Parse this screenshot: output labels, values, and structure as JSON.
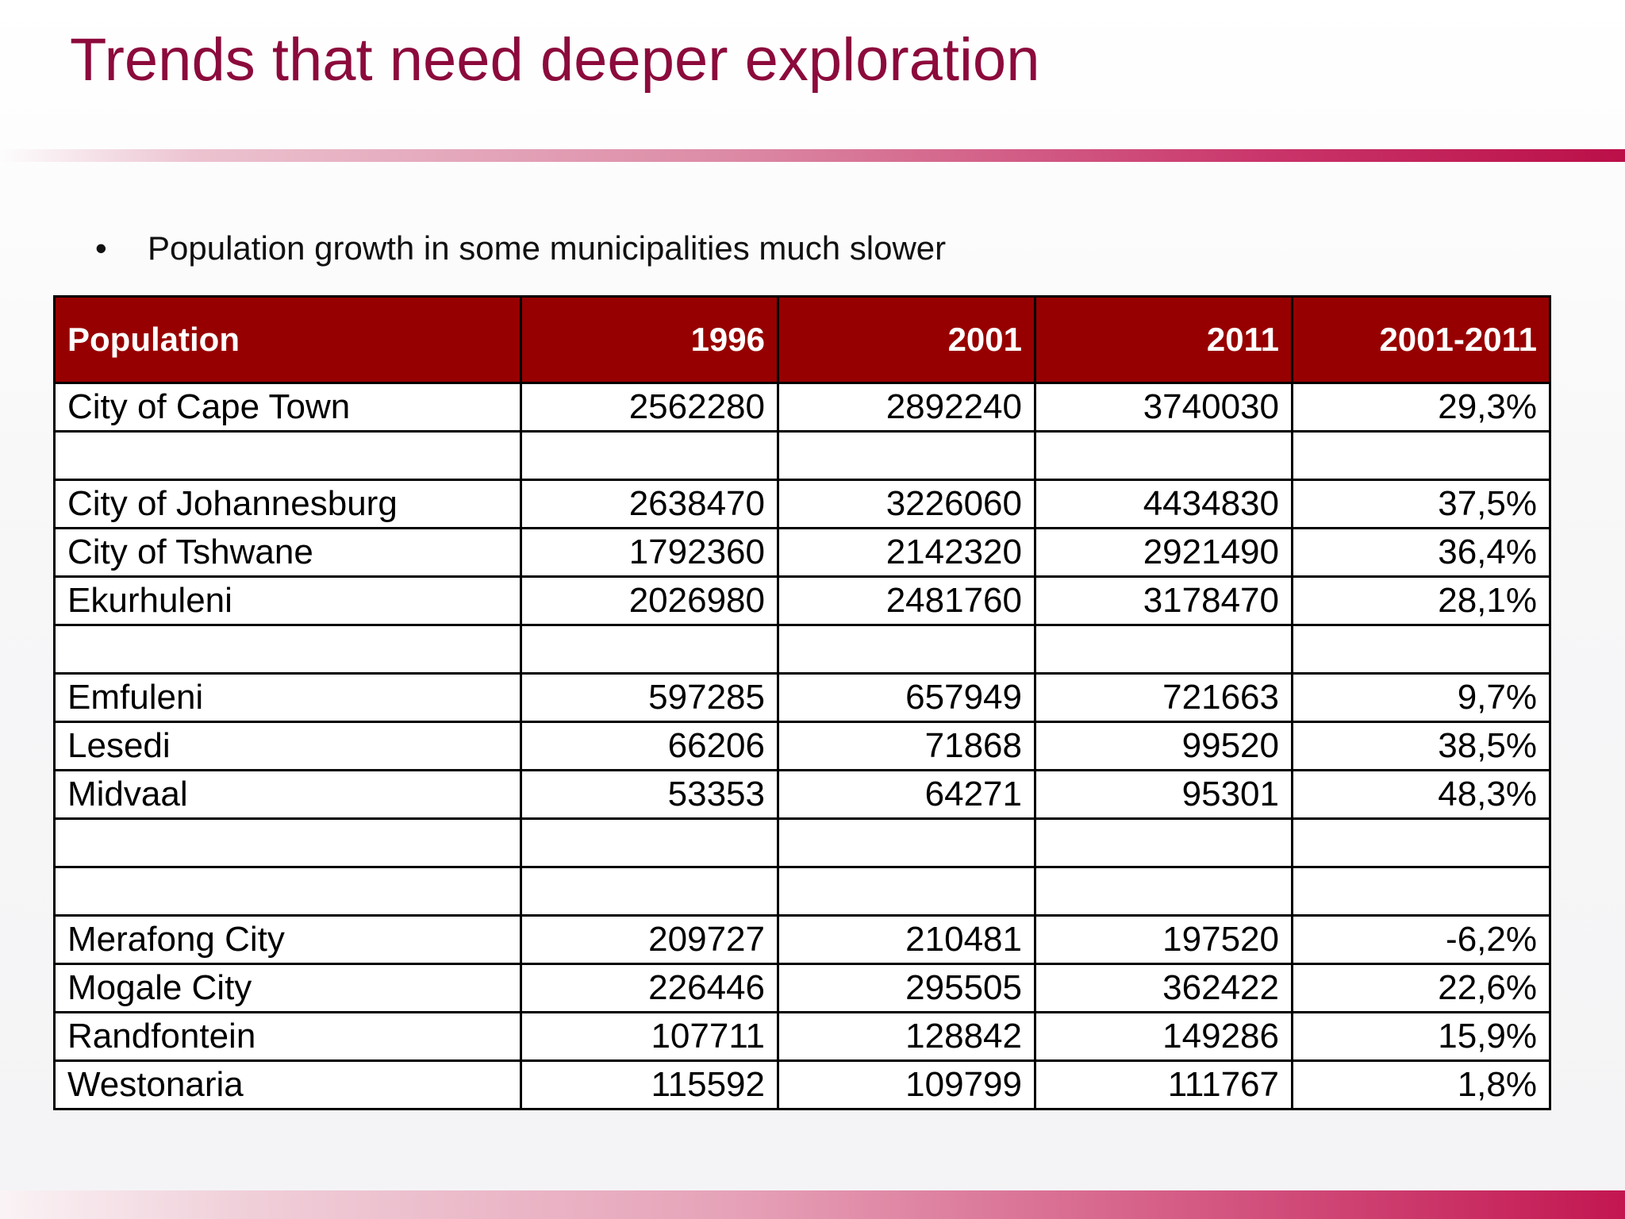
{
  "slide": {
    "title": "Trends that need deeper exploration",
    "bullet": "Population growth in some municipalities much slower",
    "bullet_glyph": "•",
    "colors": {
      "title": "#8c0a3c",
      "header_bg": "#970000",
      "header_text": "#ffffff",
      "accent_band": "#bb0f48"
    }
  },
  "table": {
    "headers": [
      "Population",
      "1996",
      "2001",
      "2011",
      "2001-2011"
    ],
    "rows": [
      [
        "City of Cape Town",
        "2562280",
        "2892240",
        "3740030",
        "29,3%"
      ],
      [
        "",
        "",
        "",
        "",
        ""
      ],
      [
        "City of Johannesburg",
        "2638470",
        "3226060",
        "4434830",
        "37,5%"
      ],
      [
        "City of Tshwane",
        "1792360",
        "2142320",
        "2921490",
        "36,4%"
      ],
      [
        "Ekurhuleni",
        "2026980",
        "2481760",
        "3178470",
        "28,1%"
      ],
      [
        "",
        "",
        "",
        "",
        ""
      ],
      [
        "Emfuleni",
        "597285",
        "657949",
        "721663",
        "9,7%"
      ],
      [
        "Lesedi",
        "66206",
        "71868",
        "99520",
        "38,5%"
      ],
      [
        "Midvaal",
        "53353",
        "64271",
        "95301",
        "48,3%"
      ],
      [
        "",
        "",
        "",
        "",
        ""
      ],
      [
        "",
        "",
        "",
        "",
        ""
      ],
      [
        "Merafong City",
        "209727",
        "210481",
        "197520",
        "-6,2%"
      ],
      [
        "Mogale City",
        "226446",
        "295505",
        "362422",
        "22,6%"
      ],
      [
        "Randfontein",
        "107711",
        "128842",
        "149286",
        "15,9%"
      ],
      [
        "Westonaria",
        "115592",
        "109799",
        "111767",
        "1,8%"
      ]
    ]
  }
}
